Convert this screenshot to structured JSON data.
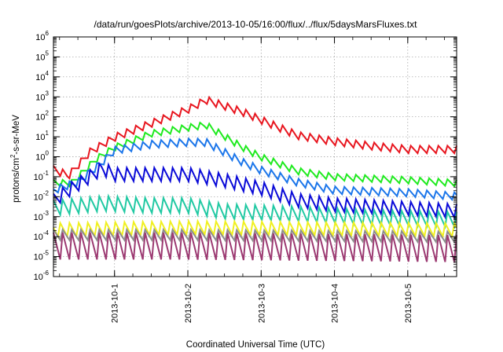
{
  "chart_data": {
    "type": "line",
    "title": "/data/run/goesPlots/archive/2013-10-05/16:00/flux/../flux/5daysMarsFluxes.txt",
    "xlabel": "Coordinated Universal Time (UTC)",
    "ylabel": {
      "prefix": "protons/cm",
      "superscript": "2",
      "suffix": "-s-sr-MeV"
    },
    "x_range": [
      "2013-09-30 04:00",
      "2013-10-05 16:00"
    ],
    "x_ticks": [
      "2013-10-1",
      "2013-10-2",
      "2013-10-3",
      "2013-10-4",
      "2013-10-5"
    ],
    "y_scale": "log",
    "y_range": [
      1e-06,
      1000000.0
    ],
    "y_ticks": [
      {
        "base": "10",
        "exp": "-6"
      },
      {
        "base": "10",
        "exp": "-5"
      },
      {
        "base": "10",
        "exp": "-4"
      },
      {
        "base": "10",
        "exp": "-3"
      },
      {
        "base": "10",
        "exp": "-2"
      },
      {
        "base": "10",
        "exp": "-1"
      },
      {
        "base": "10",
        "exp": "0"
      },
      {
        "base": "10",
        "exp": "1"
      },
      {
        "base": "10",
        "exp": "2"
      },
      {
        "base": "10",
        "exp": "3"
      },
      {
        "base": "10",
        "exp": "4"
      },
      {
        "base": "10",
        "exp": "5"
      },
      {
        "base": "10",
        "exp": "6"
      }
    ],
    "grid": true,
    "series": [
      {
        "color": "#e8161f",
        "sawtooth_amplitude_decades": 0.25,
        "trend": [
          [
            "2013-09-30 04:00",
            0.2
          ],
          [
            "2013-09-30 09:00",
            0.1
          ],
          [
            "2013-09-30 16:00",
            1.5
          ],
          [
            "2013-10-01 00:00",
            8
          ],
          [
            "2013-10-01 12:00",
            40
          ],
          [
            "2013-10-02 00:00",
            200
          ],
          [
            "2013-10-02 06:00",
            600
          ],
          [
            "2013-10-02 18:00",
            150
          ],
          [
            "2013-10-03 00:00",
            60
          ],
          [
            "2013-10-03 12:00",
            10
          ],
          [
            "2013-10-04 00:00",
            5
          ],
          [
            "2013-10-04 12:00",
            3
          ],
          [
            "2013-10-05 00:00",
            2
          ],
          [
            "2013-10-05 16:00",
            2
          ]
        ]
      },
      {
        "color": "#1fea1f",
        "sawtooth_amplitude_decades": 0.22,
        "trend": [
          [
            "2013-09-30 04:00",
            0.05
          ],
          [
            "2013-09-30 10:00",
            0.05
          ],
          [
            "2013-09-30 18:00",
            0.8
          ],
          [
            "2013-10-01 00:00",
            3
          ],
          [
            "2013-10-01 12:00",
            15
          ],
          [
            "2013-10-02 00:00",
            30
          ],
          [
            "2013-10-02 06:00",
            40
          ],
          [
            "2013-10-02 18:00",
            3
          ],
          [
            "2013-10-03 00:00",
            1
          ],
          [
            "2013-10-03 12:00",
            0.2
          ],
          [
            "2013-10-04 00:00",
            0.1
          ],
          [
            "2013-10-05 00:00",
            0.07
          ],
          [
            "2013-10-05 16:00",
            0.05
          ]
        ]
      },
      {
        "color": "#1c76ea",
        "sawtooth_amplitude_decades": 0.25,
        "trend": [
          [
            "2013-09-30 04:00",
            0.02
          ],
          [
            "2013-09-30 12:00",
            0.05
          ],
          [
            "2013-09-30 20:00",
            0.5
          ],
          [
            "2013-10-01 00:00",
            2
          ],
          [
            "2013-10-01 12:00",
            4
          ],
          [
            "2013-10-02 00:00",
            5
          ],
          [
            "2013-10-02 06:00",
            5
          ],
          [
            "2013-10-02 18:00",
            0.5
          ],
          [
            "2013-10-03 00:00",
            0.2
          ],
          [
            "2013-10-03 12:00",
            0.05
          ],
          [
            "2013-10-04 00:00",
            0.02
          ],
          [
            "2013-10-05 00:00",
            0.015
          ],
          [
            "2013-10-05 16:00",
            0.01
          ]
        ]
      },
      {
        "color": "#0a0ad8",
        "sawtooth_amplitude_decades": 0.45,
        "trend": [
          [
            "2013-09-30 04:00",
            0.005
          ],
          [
            "2013-09-30 20:00",
            0.2
          ],
          [
            "2013-10-01 00:00",
            0.1
          ],
          [
            "2013-10-01 12:00",
            0.1
          ],
          [
            "2013-10-02 00:00",
            0.1
          ],
          [
            "2013-10-02 12:00",
            0.05
          ],
          [
            "2013-10-03 00:00",
            0.02
          ],
          [
            "2013-10-03 12:00",
            0.005
          ],
          [
            "2013-10-04 00:00",
            0.003
          ],
          [
            "2013-10-05 00:00",
            0.002
          ],
          [
            "2013-10-05 16:00",
            0.0015
          ]
        ]
      },
      {
        "color": "#21c9a3",
        "sawtooth_amplitude_decades": 0.5,
        "trend": [
          [
            "2013-09-30 04:00",
            0.003
          ],
          [
            "2013-09-30 20:00",
            0.005
          ],
          [
            "2013-10-01 12:00",
            0.004
          ],
          [
            "2013-10-02 00:00",
            0.004
          ],
          [
            "2013-10-02 12:00",
            0.002
          ],
          [
            "2013-10-03 12:00",
            0.0015
          ],
          [
            "2013-10-04 12:00",
            0.001
          ],
          [
            "2013-10-05 16:00",
            0.0008
          ]
        ]
      },
      {
        "color": "#f0f020",
        "sawtooth_amplitude_decades": 0.45,
        "trend": [
          [
            "2013-09-30 04:00",
            0.0002
          ],
          [
            "2013-10-02 00:00",
            0.00025
          ],
          [
            "2013-10-05 16:00",
            0.0002
          ]
        ]
      },
      {
        "color": "#8e8e8e",
        "sawtooth_amplitude_decades": 0.35,
        "trend": [
          [
            "2013-09-30 04:00",
            0.0001
          ],
          [
            "2013-10-02 00:00",
            0.0001
          ],
          [
            "2013-10-05 16:00",
            8e-05
          ]
        ]
      },
      {
        "color": "#9c3a72",
        "sawtooth_amplitude_decades": 0.9,
        "trend": [
          [
            "2013-09-30 04:00",
            4e-05
          ],
          [
            "2013-10-02 00:00",
            4e-05
          ],
          [
            "2013-10-05 16:00",
            3e-05
          ]
        ]
      }
    ]
  }
}
